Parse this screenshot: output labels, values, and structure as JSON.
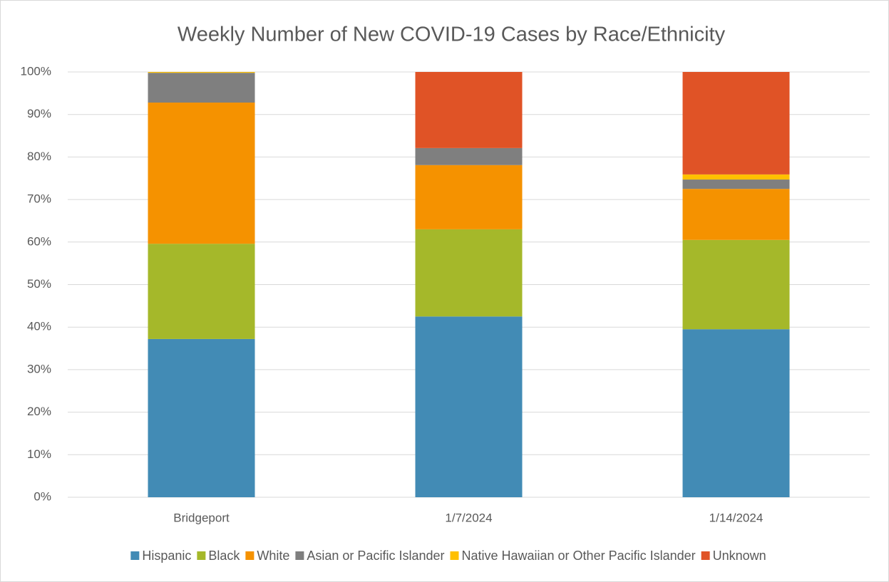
{
  "chart_data": {
    "type": "stacked_bar",
    "title": "Weekly Number of New COVID-19 Cases by Race/Ethnicity",
    "categories": [
      "Bridgeport",
      "1/7/2024",
      "1/14/2024"
    ],
    "series": [
      {
        "name": "Hispanic",
        "color": "#428bb5",
        "values": [
          37.2,
          42.5,
          39.5
        ]
      },
      {
        "name": "Black",
        "color": "#a5b82a",
        "values": [
          22.4,
          20.5,
          21.0
        ]
      },
      {
        "name": "White",
        "color": "#f59200",
        "values": [
          33.2,
          15.1,
          12.0
        ]
      },
      {
        "name": "Asian or Pacific Islander",
        "color": "#7f7f7f",
        "values": [
          7.0,
          4.0,
          2.2
        ]
      },
      {
        "name": "Native Hawaiian or Other Pacific Islander",
        "color": "#ffc000",
        "values": [
          0.2,
          0,
          1.2
        ]
      },
      {
        "name": "Unknown",
        "color": "#e05326",
        "values": [
          0,
          17.9,
          24.1
        ]
      }
    ],
    "ylim": [
      0,
      100
    ],
    "yticks": [
      {
        "value": 0,
        "label": "0%"
      },
      {
        "value": 10,
        "label": "10%"
      },
      {
        "value": 20,
        "label": "20%"
      },
      {
        "value": 30,
        "label": "30%"
      },
      {
        "value": 40,
        "label": "40%"
      },
      {
        "value": 50,
        "label": "50%"
      },
      {
        "value": 60,
        "label": "60%"
      },
      {
        "value": 70,
        "label": "70%"
      },
      {
        "value": 80,
        "label": "80%"
      },
      {
        "value": 90,
        "label": "90%"
      },
      {
        "value": 100,
        "label": "100%"
      }
    ],
    "grid": true,
    "legend": "bottom"
  }
}
